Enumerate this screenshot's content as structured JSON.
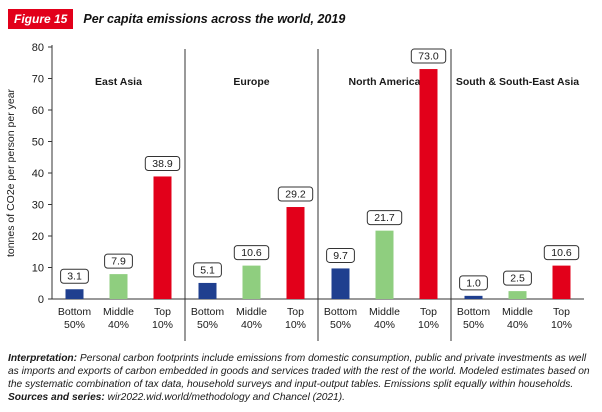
{
  "figure": {
    "badge": "Figure 15",
    "title": "Per capita emissions across the world, 2019"
  },
  "interpretation": {
    "label": "Interpretation:",
    "text": "Personal carbon footprints include emissions from domestic consumption, public and private investments as well as imports and exports of carbon embedded in goods and services traded with the rest of the world. Modeled estimates based on the systematic combination of tax data, household surveys and input-output tables. Emissions split equally within households.",
    "sources_label": "Sources and series:",
    "sources_text": "wir2022.wid.world/methodology and Chancel (2021)."
  },
  "chart_data": {
    "type": "bar",
    "ylabel": "tonnes of CO2e per person per year",
    "ylim": [
      0,
      80
    ],
    "yticks": [
      0,
      10,
      20,
      30,
      40,
      50,
      60,
      70,
      80
    ],
    "grid": false,
    "categories": [
      "Bottom 50%",
      "Middle 40%",
      "Top 10%"
    ],
    "category_lines": [
      [
        "Bottom",
        "50%"
      ],
      [
        "Middle",
        "40%"
      ],
      [
        "Top",
        "10%"
      ]
    ],
    "colors": [
      "#1f3f8f",
      "#8fce7f",
      "#e2001a"
    ],
    "groups": [
      {
        "name": "East Asia",
        "values": [
          3.1,
          7.9,
          38.9
        ],
        "labels": [
          "3.1",
          "7.9",
          "38.9"
        ]
      },
      {
        "name": "Europe",
        "values": [
          5.1,
          10.6,
          29.2
        ],
        "labels": [
          "5.1",
          "10.6",
          "29.2"
        ]
      },
      {
        "name": "North America",
        "values": [
          9.7,
          21.7,
          73.0
        ],
        "labels": [
          "9.7",
          "21.7",
          "73.0"
        ]
      },
      {
        "name": "South & South-East Asia",
        "values": [
          1.0,
          2.5,
          10.6
        ],
        "labels": [
          "1.0",
          "2.5",
          "10.6"
        ]
      }
    ]
  }
}
